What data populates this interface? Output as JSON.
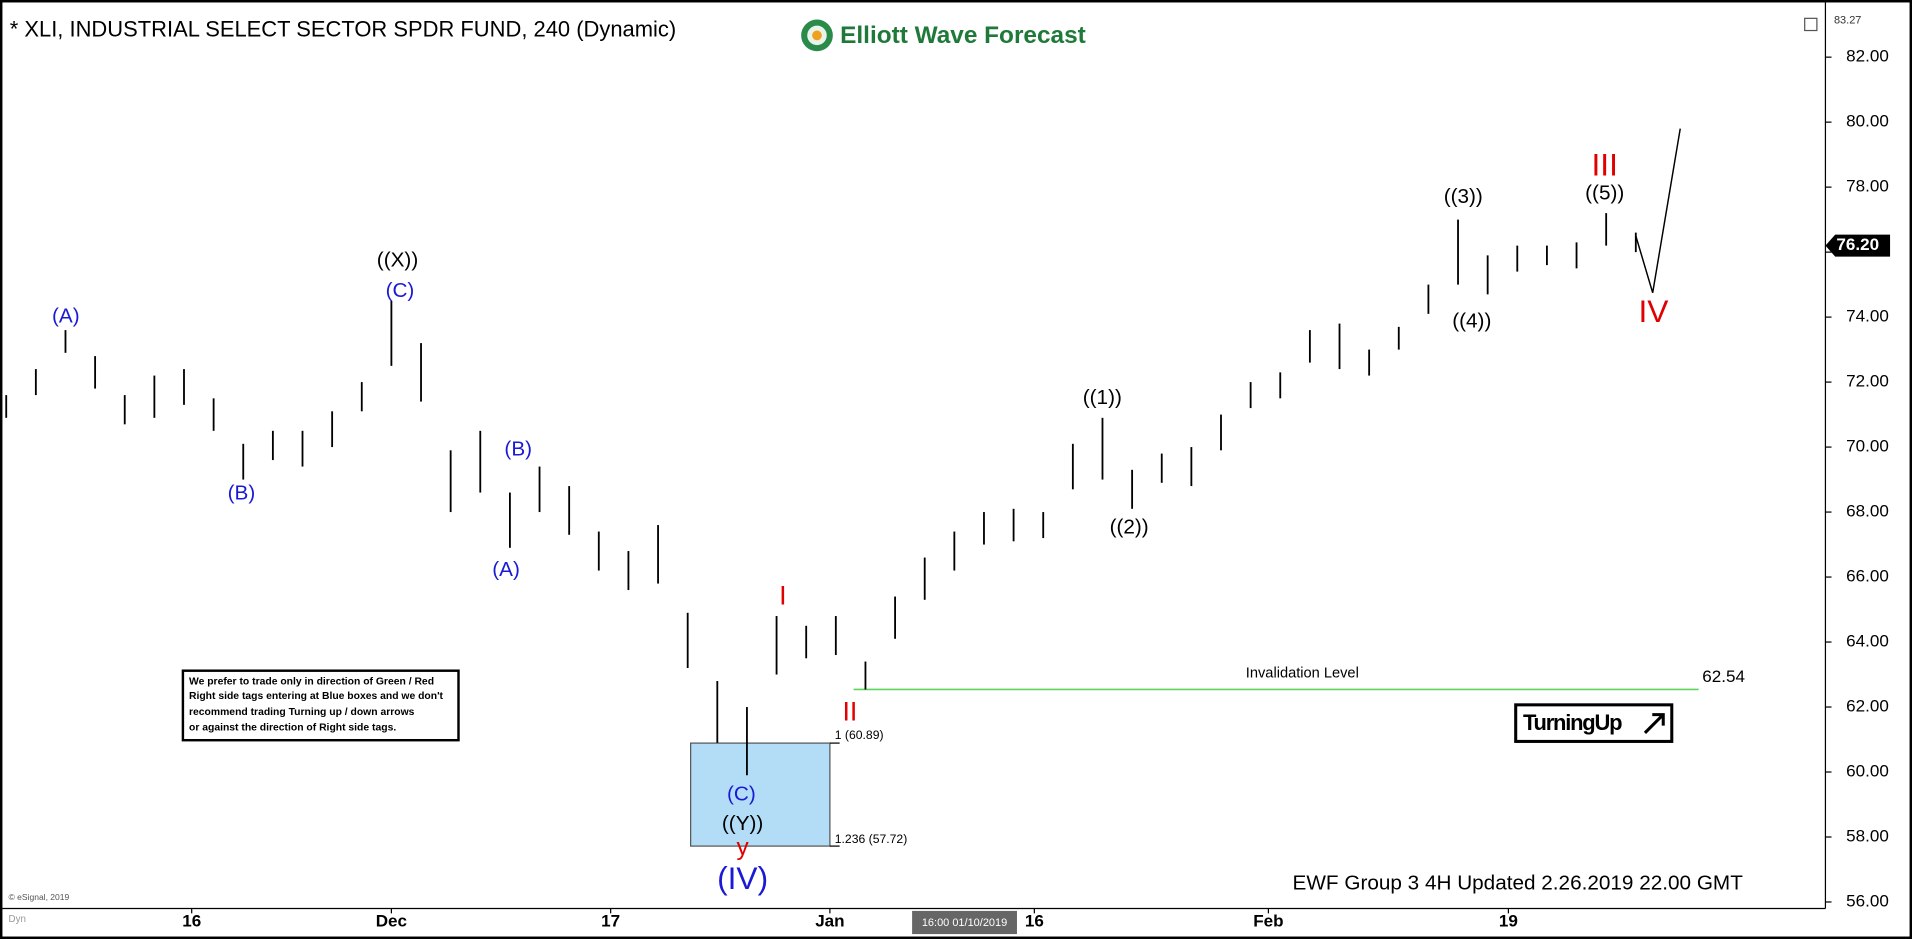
{
  "chart_data": {
    "type": "ohlc",
    "title": "* XLI, INDUSTRIAL SELECT SECTOR SPDR FUND, 240 (Dynamic)",
    "logo": "Elliott Wave Forecast",
    "footer": "EWF Group 3 4H Updated 2.26.2019 22.00 GMT",
    "copyright": "© eSignal, 2019",
    "dyn": "Dyn",
    "cursor_label": "16:00 01/10/2019",
    "turning_up": "TurningUp",
    "note": [
      "We prefer to trade only in direction of Green / Red",
      "Right side tags entering at Blue boxes and we don't",
      "recommend trading Turning up / down arrows",
      "or against the direction of Right side tags."
    ],
    "color": "#000000",
    "high": [
      71.6,
      72.4,
      73.6,
      72.8,
      71.6,
      72.2,
      72.4,
      71.5,
      70.1,
      70.5,
      70.5,
      71.1,
      72.0,
      74.5,
      73.2,
      69.9,
      70.5,
      68.6,
      69.4,
      68.8,
      67.4,
      66.8,
      67.6,
      64.9,
      62.8,
      62.0,
      64.8,
      64.5,
      64.8,
      63.4,
      65.4,
      66.6,
      67.4,
      68.0,
      68.1,
      68.0,
      70.1,
      70.9,
      69.3,
      69.8,
      70.0,
      71.0,
      72.0,
      72.3,
      73.6,
      73.8,
      73.0,
      73.7,
      75.0,
      77.0,
      75.9,
      76.2,
      76.2,
      76.3,
      77.2,
      76.6
    ],
    "low": [
      70.9,
      71.6,
      72.9,
      71.8,
      70.7,
      70.9,
      71.3,
      70.5,
      69.0,
      69.6,
      69.4,
      70.0,
      71.1,
      72.5,
      71.4,
      68.0,
      68.6,
      66.9,
      68.0,
      67.3,
      66.2,
      65.6,
      65.8,
      63.2,
      60.9,
      59.9,
      63.0,
      63.5,
      63.6,
      62.54,
      64.1,
      65.3,
      66.2,
      67.0,
      67.1,
      67.2,
      68.7,
      69.0,
      68.1,
      68.9,
      68.8,
      69.9,
      71.2,
      71.5,
      72.6,
      72.4,
      72.2,
      73.0,
      74.1,
      75.0,
      74.7,
      75.4,
      75.6,
      75.5,
      76.2,
      76.0
    ],
    "projection": {
      "x": [
        55,
        55.57,
        56.5
      ],
      "values": [
        76.5,
        74.75,
        79.8
      ],
      "color": "#000000"
    },
    "invalidation": {
      "label": "Invalidation Level",
      "value": 62.54,
      "color": "#5cd65c"
    },
    "fib_box": {
      "values": [
        60.89,
        57.72
      ],
      "value_labels": [
        "1 (60.89)",
        "1.236 (57.72)"
      ],
      "color": "#b3dcf7"
    },
    "last_price": {
      "value": 76.2,
      "label": "76.20"
    },
    "ylim": [
      55.8,
      83.27
    ],
    "yticks": [
      {
        "value": 56,
        "label": "56.00"
      },
      {
        "value": 58,
        "label": "58.00"
      },
      {
        "value": 60,
        "label": "60.00"
      },
      {
        "value": 62,
        "label": "62.00"
      },
      {
        "value": 64,
        "label": "64.00"
      },
      {
        "value": 66,
        "label": "66.00"
      },
      {
        "value": 68,
        "label": "68.00"
      },
      {
        "value": 70,
        "label": "70.00"
      },
      {
        "value": 72,
        "label": "72.00"
      },
      {
        "value": 74,
        "label": "74.00"
      },
      {
        "value": 76,
        "label": "76.00"
      },
      {
        "value": 78,
        "label": "78.00"
      },
      {
        "value": 80,
        "label": "80.00"
      },
      {
        "value": 82,
        "label": "82.00"
      }
    ],
    "xlim": [
      -0.21,
      61.4
    ],
    "xticks": [
      {
        "value": 6.26,
        "label": "16"
      },
      {
        "value": 13.0,
        "label": "Dec"
      },
      {
        "value": 20.4,
        "label": "17"
      },
      {
        "value": 27.8,
        "label": "Jan"
      },
      {
        "value": 34.7,
        "label": "16"
      },
      {
        "value": 42.6,
        "label": "Feb"
      },
      {
        "value": 50.7,
        "label": "19"
      }
    ],
    "annotations": [
      {
        "text": "(A)",
        "color": "#1a1ad6"
      },
      {
        "text": "(B)",
        "color": "#1a1ad6"
      },
      {
        "text": "((X))",
        "color": "#000000"
      },
      {
        "text": "(C)",
        "color": "#1a1ad6"
      },
      {
        "text": "(B)",
        "color": "#1a1ad6"
      },
      {
        "text": "(A)",
        "color": "#1a1ad6"
      },
      {
        "text": "I",
        "color": "#e00000"
      },
      {
        "text": "II",
        "color": "#e00000"
      },
      {
        "text": "(C)",
        "color": "#1a1ad6"
      },
      {
        "text": "((Y))",
        "color": "#000000"
      },
      {
        "text": "y",
        "color": "#e00000"
      },
      {
        "text": "(IV)",
        "color": "#1a1ad6"
      },
      {
        "text": "((1))",
        "color": "#000000"
      },
      {
        "text": "((2))",
        "color": "#000000"
      },
      {
        "text": "((3))",
        "color": "#000000"
      },
      {
        "text": "((4))",
        "color": "#000000"
      },
      {
        "text": "III",
        "color": "#e00000"
      },
      {
        "text": "((5))",
        "color": "#000000"
      },
      {
        "text": "IV",
        "color": "#e00000"
      }
    ]
  }
}
